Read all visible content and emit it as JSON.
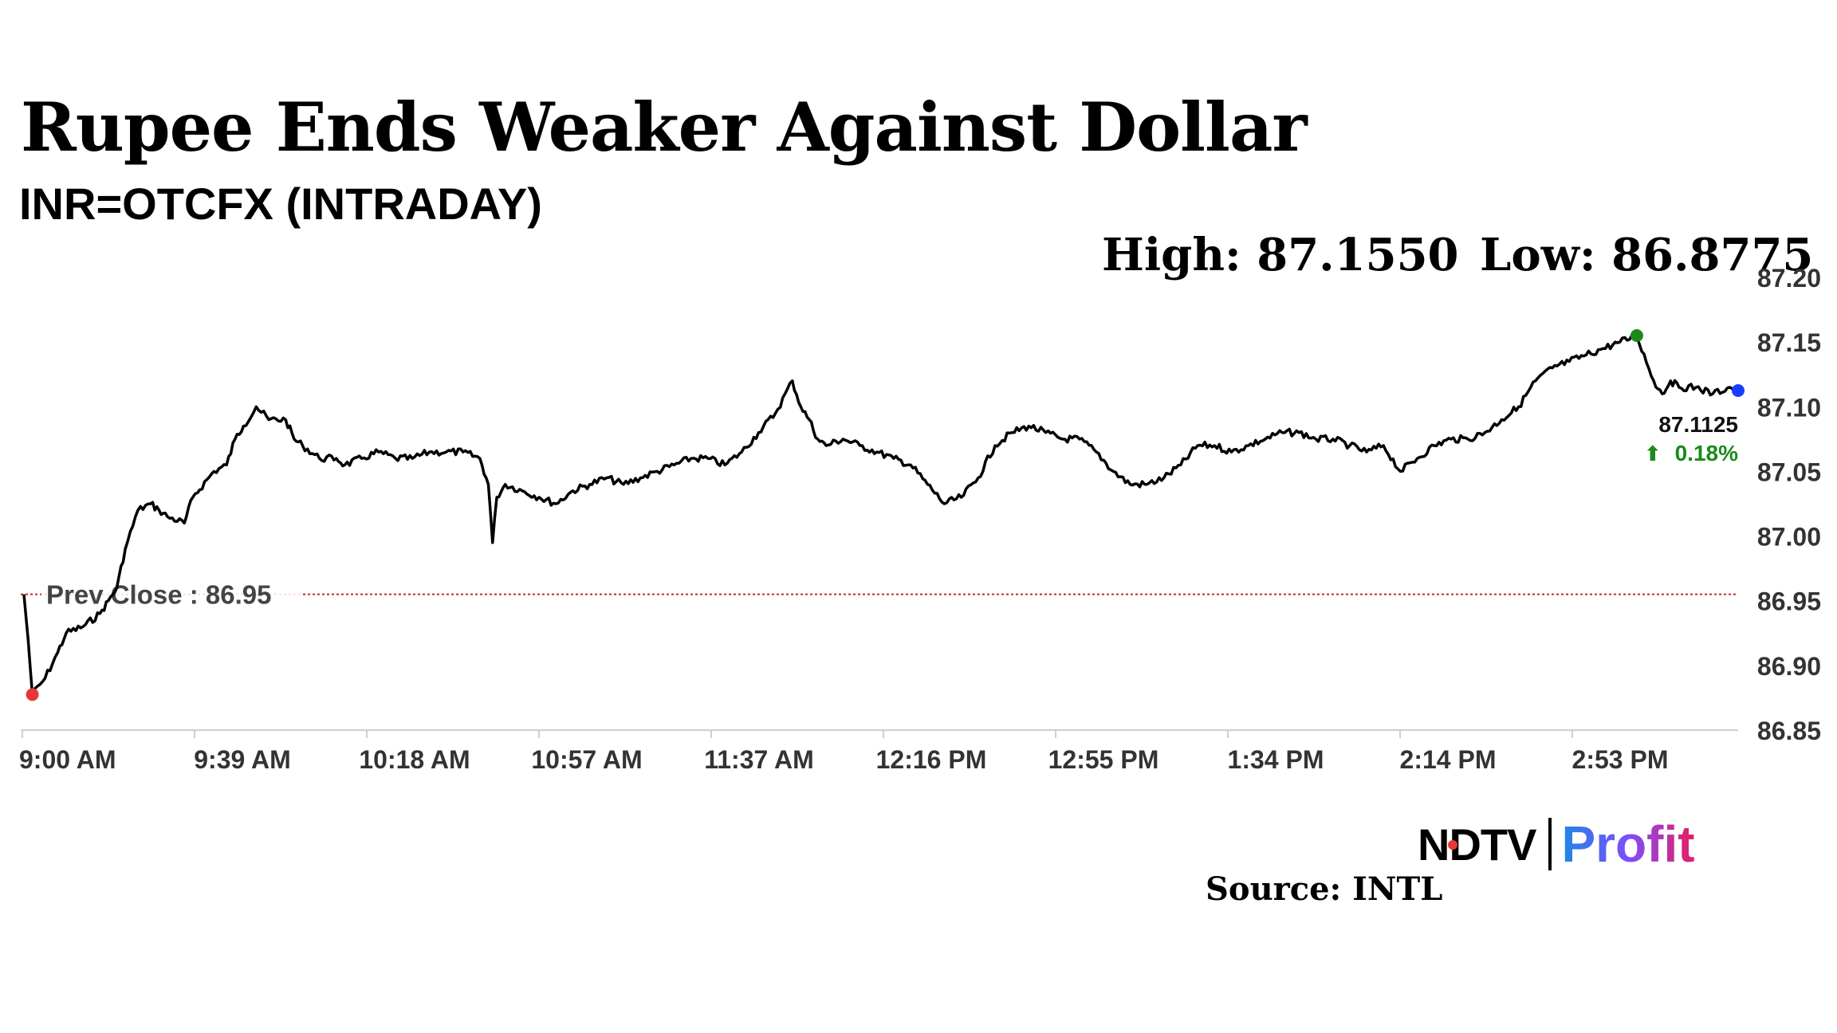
{
  "header": {
    "title": "Rupee Ends Weaker Against Dollar",
    "subtitle": "INR=OTCFX (INTRADAY)",
    "high": "High: 87.1550",
    "low": "Low: 86.8775"
  },
  "footer": {
    "brand_ndtv": "NDTV",
    "brand_profit": "Profit",
    "source": "Source: INTL"
  },
  "colors": {
    "line": "#000000",
    "prev_close": "#c62828",
    "low_marker": "#e53935",
    "high_marker": "#1b8a1b",
    "last_marker": "#1a3cff",
    "change_up": "#1b8a1b",
    "axis_text": "#333333"
  },
  "chart_data": {
    "type": "line",
    "title": "Rupee Ends Weaker Against Dollar",
    "subtitle": "INR=OTCFX (INTRADAY)",
    "xlabel": "",
    "ylabel": "",
    "ylim": [
      86.85,
      87.2
    ],
    "y_ticks": [
      "87.20",
      "87.15",
      "87.10",
      "87.05",
      "87.00",
      "86.95",
      "86.90",
      "86.85"
    ],
    "x_ticks": [
      "9:00 AM",
      "9:39 AM",
      "10:18 AM",
      "10:57 AM",
      "11:37 AM",
      "12:16 PM",
      "12:55 PM",
      "1:34 PM",
      "2:14 PM",
      "2:53 PM"
    ],
    "grid": false,
    "prev_close": {
      "label": "Prev Close : 86.95",
      "value": 86.955
    },
    "high": 87.155,
    "low": 86.8775,
    "last": {
      "value_label": "87.1125",
      "change_label": "0.18%",
      "value": 87.1125
    },
    "series": [
      {
        "x": [
          0,
          1,
          2,
          5,
          8,
          10,
          14,
          18,
          20,
          22,
          24,
          27,
          30,
          32,
          34,
          38,
          40,
          45,
          48,
          50,
          52,
          55,
          58,
          62,
          64,
          66,
          70,
          74,
          76,
          80,
          84,
          88,
          92,
          96,
          100,
          104,
          108,
          110,
          111,
          112,
          114,
          118,
          122,
          126,
          130,
          134,
          138,
          142,
          146,
          150,
          154,
          158,
          162,
          166,
          170,
          174,
          178,
          182,
          184,
          186,
          188,
          190,
          194,
          198,
          202,
          206,
          210,
          214,
          218,
          222,
          226,
          230,
          234,
          238,
          242,
          246,
          250,
          254,
          258,
          262,
          266,
          270,
          274,
          278,
          282,
          286,
          290,
          294,
          298,
          302,
          306,
          310,
          314,
          318,
          322,
          326,
          330,
          334,
          338,
          342,
          346,
          350,
          354,
          358,
          362,
          366,
          370,
          374,
          378,
          382,
          386,
          388,
          390,
          392,
          396,
          400,
          404,
          406
        ],
        "y": [
          86.955,
          86.92,
          86.8775,
          86.89,
          86.91,
          86.925,
          86.93,
          86.94,
          86.95,
          86.96,
          86.99,
          87.02,
          87.025,
          87.02,
          87.015,
          87.01,
          87.03,
          87.05,
          87.055,
          87.075,
          87.085,
          87.1,
          87.09,
          87.09,
          87.075,
          87.07,
          87.06,
          87.06,
          87.055,
          87.06,
          87.065,
          87.06,
          87.06,
          87.065,
          87.065,
          87.065,
          87.06,
          87.04,
          86.995,
          87.03,
          87.04,
          87.035,
          87.03,
          87.025,
          87.035,
          87.04,
          87.045,
          87.04,
          87.045,
          87.05,
          87.055,
          87.06,
          87.06,
          87.055,
          87.065,
          87.08,
          87.095,
          87.12,
          87.1,
          87.09,
          87.075,
          87.07,
          87.075,
          87.07,
          87.065,
          87.06,
          87.055,
          87.04,
          87.025,
          87.03,
          87.045,
          87.07,
          87.08,
          87.085,
          87.08,
          87.075,
          87.075,
          87.065,
          87.05,
          87.04,
          87.04,
          87.045,
          87.055,
          87.07,
          87.07,
          87.065,
          87.07,
          87.075,
          87.08,
          87.08,
          87.075,
          87.075,
          87.07,
          87.065,
          87.07,
          87.05,
          87.06,
          87.07,
          87.075,
          87.075,
          87.08,
          87.09,
          87.1,
          87.12,
          87.13,
          87.135,
          87.14,
          87.145,
          87.15,
          87.155,
          87.12,
          87.11,
          87.12,
          87.115,
          87.115,
          87.11,
          87.115,
          87.1125
        ]
      }
    ]
  }
}
